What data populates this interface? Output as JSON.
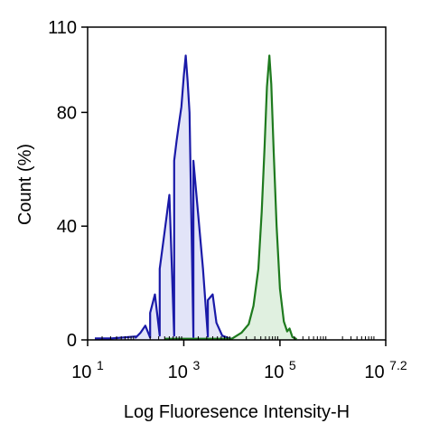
{
  "chart_data": {
    "type": "area",
    "xlabel": "Log Fluoresence Intensity-H",
    "ylabel": "Count  (%)",
    "x_scale": "log10",
    "xlim": [
      1,
      7.2
    ],
    "ylim": [
      0,
      110
    ],
    "x_ticks": [
      {
        "base": "10",
        "exp": "1",
        "value": 1
      },
      {
        "base": "10",
        "exp": "3",
        "value": 3
      },
      {
        "base": "10",
        "exp": "5",
        "value": 5
      },
      {
        "base": "10",
        "exp": "7.2",
        "value": 7.2
      }
    ],
    "y_ticks": [
      {
        "label": "0",
        "value": 0
      },
      {
        "label": "40",
        "value": 40
      },
      {
        "label": "80",
        "value": 80
      },
      {
        "label": "110",
        "value": 110
      }
    ],
    "grid": false,
    "legend": "none",
    "series": [
      {
        "color": "#1a1aa8",
        "fill": "#e2e4f8",
        "points": [
          [
            1.15,
            0.5
          ],
          [
            1.5,
            0.5
          ],
          [
            2.0,
            1.2
          ],
          [
            2.3,
            0.8
          ],
          [
            2.5,
            1.5
          ],
          [
            2.8,
            1.5
          ],
          [
            3.2,
            1.0
          ],
          [
            3.5,
            1.2
          ],
          [
            2.0,
            0.8
          ],
          [
            2.1,
            2.5
          ],
          [
            2.2,
            5.0
          ],
          [
            2.3,
            9.5
          ],
          [
            2.4,
            16.0
          ],
          [
            2.5,
            25.0
          ],
          [
            2.6,
            38.0
          ],
          [
            2.7,
            51.0
          ],
          [
            2.8,
            63.0
          ],
          [
            2.85,
            70.0
          ],
          [
            2.9,
            76.0
          ],
          [
            2.95,
            82.0
          ],
          [
            3.0,
            93.0
          ],
          [
            3.04,
            100.0
          ],
          [
            3.08,
            91.0
          ],
          [
            3.12,
            80.0
          ],
          [
            3.2,
            63.0
          ],
          [
            3.3,
            44.0
          ],
          [
            3.4,
            25.0
          ],
          [
            3.5,
            14.0
          ],
          [
            3.6,
            16.0
          ],
          [
            3.68,
            6.0
          ],
          [
            3.8,
            1.5
          ],
          [
            3.95,
            0.5
          ],
          [
            4.1,
            0.3
          ]
        ]
      },
      {
        "color": "#1e7a1e",
        "fill": "#e0f0e0",
        "points": [
          [
            2.6,
            0.4
          ],
          [
            3.2,
            0.4
          ],
          [
            3.8,
            0.4
          ],
          [
            4.0,
            0.4
          ],
          [
            4.2,
            2.5
          ],
          [
            4.35,
            5.5
          ],
          [
            4.45,
            12.0
          ],
          [
            4.55,
            25.0
          ],
          [
            4.62,
            45.0
          ],
          [
            4.68,
            68.0
          ],
          [
            4.73,
            89.0
          ],
          [
            4.78,
            100.0
          ],
          [
            4.82,
            90.0
          ],
          [
            4.87,
            66.0
          ],
          [
            4.93,
            40.0
          ],
          [
            5.0,
            18.0
          ],
          [
            5.08,
            6.5
          ],
          [
            5.15,
            3.0
          ],
          [
            5.2,
            4.0
          ],
          [
            5.26,
            1.0
          ],
          [
            5.35,
            0.3
          ]
        ]
      }
    ]
  }
}
